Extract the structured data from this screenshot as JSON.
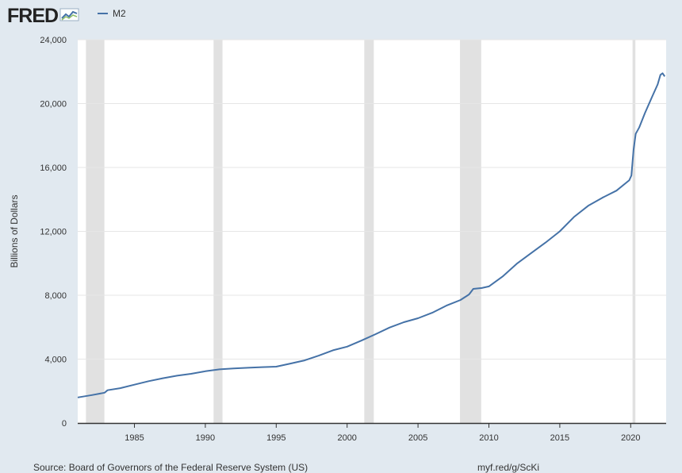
{
  "header": {
    "logo_text": "FRED",
    "logo_mark": "fred-chart-icon"
  },
  "legend": {
    "label": "M2"
  },
  "footer": {
    "source": "Source: Board of Governors of the Federal Reserve System (US)",
    "link": "myf.red/g/ScKi"
  },
  "colors": {
    "background": "#e1e9f0",
    "plot_background": "#ffffff",
    "series": "#4572a7",
    "recession": "#e1e1e1",
    "gridline": "#e6e6e6"
  },
  "chart_data": {
    "type": "line",
    "title": "",
    "xlabel": "",
    "ylabel": "Billions of Dollars",
    "xlim": [
      1981.0,
      2022.5
    ],
    "ylim": [
      0,
      24000
    ],
    "x_ticks": [
      1985,
      1990,
      1995,
      2000,
      2005,
      2010,
      2015,
      2020
    ],
    "y_ticks": [
      0,
      4000,
      8000,
      12000,
      16000,
      20000,
      24000
    ],
    "grid": "horizontal",
    "legend_position": "top-left",
    "recessions": [
      [
        1981.58,
        1982.88
      ],
      [
        1990.58,
        1991.21
      ],
      [
        2001.21,
        2001.88
      ],
      [
        2007.96,
        2009.46
      ],
      [
        2020.13,
        2020.33
      ]
    ],
    "series": [
      {
        "name": "M2",
        "x": [
          1981.0,
          1982.0,
          1982.9,
          1983.1,
          1984.0,
          1985.0,
          1986.0,
          1987.0,
          1988.0,
          1989.0,
          1990.0,
          1991.0,
          1992.0,
          1993.0,
          1994.0,
          1995.0,
          1996.0,
          1997.0,
          1998.0,
          1999.0,
          2000.0,
          2001.0,
          2002.0,
          2003.0,
          2004.0,
          2005.0,
          2006.0,
          2007.0,
          2008.0,
          2008.6,
          2008.9,
          2009.5,
          2010.0,
          2011.0,
          2012.0,
          2013.0,
          2014.0,
          2015.0,
          2016.0,
          2017.0,
          2018.0,
          2019.0,
          2019.9,
          2020.05,
          2020.2,
          2020.35,
          2020.6,
          2021.0,
          2021.5,
          2021.9,
          2022.1,
          2022.25,
          2022.4
        ],
        "y": [
          1600,
          1750,
          1900,
          2050,
          2180,
          2400,
          2620,
          2800,
          2960,
          3080,
          3240,
          3360,
          3420,
          3460,
          3500,
          3530,
          3720,
          3920,
          4220,
          4550,
          4780,
          5160,
          5560,
          5980,
          6310,
          6560,
          6900,
          7350,
          7700,
          8050,
          8400,
          8450,
          8550,
          9200,
          10000,
          10650,
          11300,
          12000,
          12900,
          13600,
          14100,
          14550,
          15200,
          15500,
          17100,
          18100,
          18500,
          19400,
          20400,
          21200,
          21800,
          21900,
          21700
        ]
      }
    ]
  }
}
